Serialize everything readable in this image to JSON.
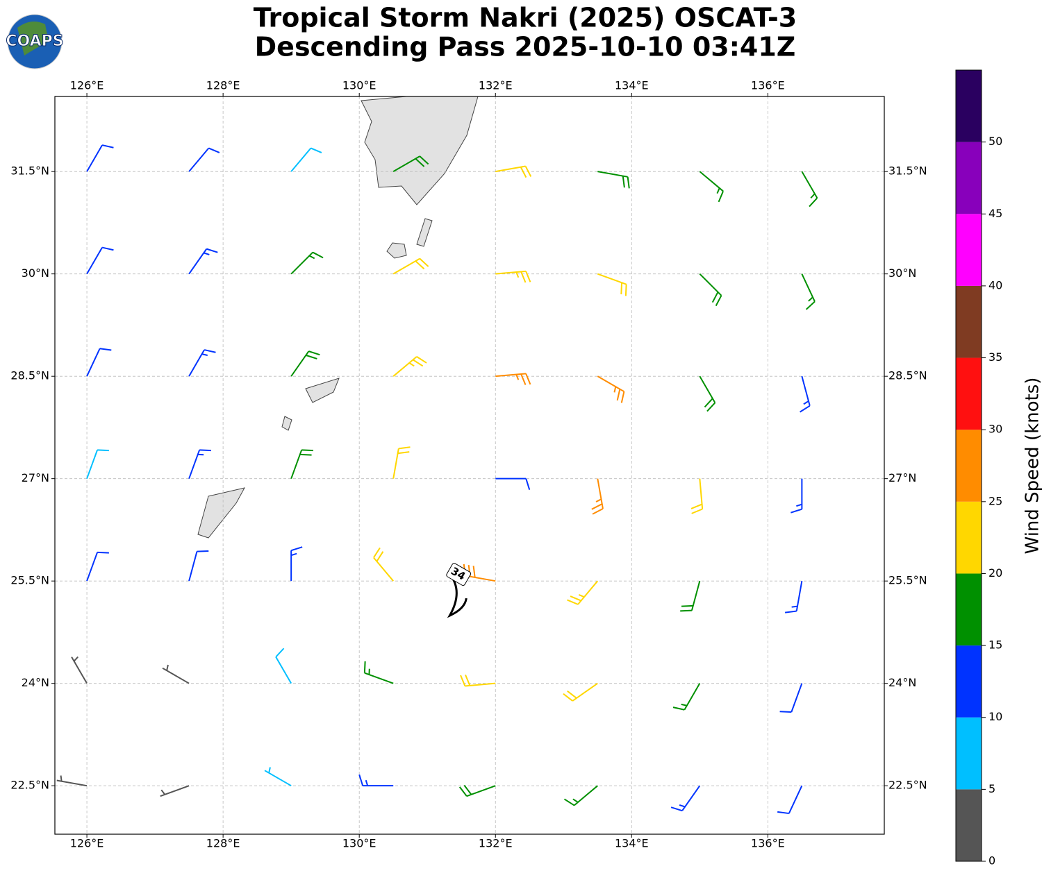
{
  "logo": "COAPS",
  "chart_data": {
    "type": "wind-barbs",
    "title_lines": [
      "Tropical Storm Nakri (2025) OSCAT-3",
      "Descending Pass 2025-10-10 03:41Z"
    ],
    "xlim": [
      125.53,
      137.71
    ],
    "ylim": [
      21.79,
      32.6
    ],
    "xticks": [
      {
        "value": 126,
        "label": "126°E"
      },
      {
        "value": 128,
        "label": "128°E"
      },
      {
        "value": 130,
        "label": "130°E"
      },
      {
        "value": 132,
        "label": "132°E"
      },
      {
        "value": 134,
        "label": "134°E"
      },
      {
        "value": 136,
        "label": "136°E"
      }
    ],
    "yticks": [
      {
        "value": 22.5,
        "label": "22.5°N"
      },
      {
        "value": 24,
        "label": "24°N"
      },
      {
        "value": 25.5,
        "label": "25.5°N"
      },
      {
        "value": 27,
        "label": "27°N"
      },
      {
        "value": 28.5,
        "label": "28.5°N"
      },
      {
        "value": 30,
        "label": "30°N"
      },
      {
        "value": 31.5,
        "label": "31.5°N"
      }
    ],
    "grid": true,
    "barbs": {
      "lon": [
        126,
        127.5,
        129,
        130.5,
        132,
        133.5,
        135,
        136.5,
        126,
        127.5,
        129,
        130.5,
        132,
        133.5,
        135,
        136.5,
        126,
        127.5,
        129,
        130.5,
        132,
        133.5,
        135,
        136.5,
        126,
        127.5,
        129,
        130.5,
        132,
        133.5,
        135,
        136.5,
        126,
        127.5,
        129,
        130.5,
        132,
        133.5,
        135,
        136.5,
        126,
        127.5,
        129,
        130.5,
        132,
        133.5,
        135,
        136.5,
        126,
        127.5,
        129,
        130.5,
        132,
        133.5,
        135,
        136.5
      ],
      "lat": [
        31.5,
        31.5,
        31.5,
        31.5,
        31.5,
        31.5,
        31.5,
        31.5,
        30,
        30,
        30,
        30,
        30,
        30,
        30,
        30,
        28.5,
        28.5,
        28.5,
        28.5,
        28.5,
        28.5,
        28.5,
        28.5,
        27,
        27,
        27,
        27,
        27,
        27,
        27,
        27,
        25.5,
        25.5,
        25.5,
        25.5,
        25.5,
        25.5,
        25.5,
        25.5,
        24,
        24,
        24,
        24,
        24,
        24,
        24,
        24,
        22.5,
        22.5,
        22.5,
        22.5,
        22.5,
        22.5,
        22.5,
        22.5
      ],
      "speed": [
        11,
        12,
        9,
        18,
        22,
        18,
        17,
        17,
        12,
        13,
        16,
        22,
        23,
        20,
        18,
        17,
        12,
        14,
        18,
        24,
        27,
        26,
        18,
        13,
        9,
        13,
        18,
        22,
        12,
        25,
        20,
        13,
        10,
        12,
        14,
        20,
        28,
        23,
        18,
        13,
        4,
        3,
        8,
        17,
        22,
        21,
        16,
        12,
        3,
        4,
        7,
        14,
        18,
        15,
        14,
        10
      ],
      "direction": [
        30,
        40,
        40,
        60,
        80,
        100,
        130,
        150,
        30,
        35,
        45,
        60,
        85,
        110,
        135,
        155,
        25,
        30,
        35,
        50,
        85,
        120,
        150,
        165,
        20,
        20,
        20,
        10,
        90,
        170,
        175,
        180,
        20,
        15,
        0,
        320,
        280,
        220,
        195,
        190,
        330,
        300,
        330,
        290,
        265,
        235,
        210,
        200,
        280,
        250,
        300,
        270,
        250,
        230,
        215,
        205
      ]
    },
    "annotations": [
      {
        "label": "34",
        "lon": 131.45,
        "lat": 25.45
      }
    ],
    "colorbar": {
      "label": "Wind Speed (knots)",
      "levels": [
        0,
        5,
        10,
        15,
        20,
        25,
        30,
        35,
        40,
        45,
        50,
        55
      ],
      "colors": [
        "#555555",
        "#00bfff",
        "#0033ff",
        "#009000",
        "#ffd700",
        "#ff8c00",
        "#ff1010",
        "#7f3b22",
        "#ff00ff",
        "#8800bb",
        "#2a0060"
      ],
      "ylim": [
        0,
        55
      ],
      "ticks": [
        0,
        5,
        10,
        15,
        20,
        25,
        30,
        35,
        40,
        45,
        50
      ]
    }
  }
}
